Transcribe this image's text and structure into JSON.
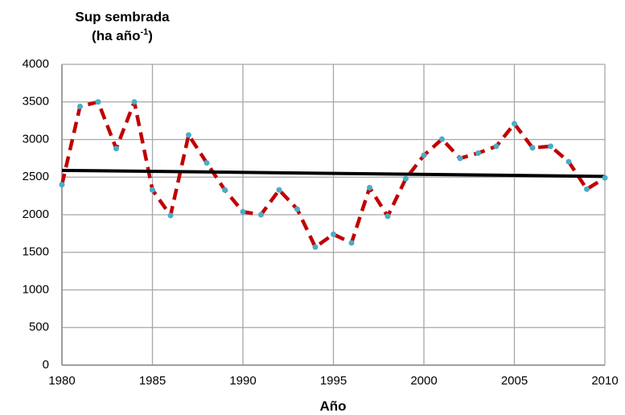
{
  "chart_data": {
    "type": "line",
    "ylabel": {
      "line1": "Sup sembrada",
      "line2": "(ha año",
      "sup": "-1",
      "close": ")"
    },
    "xlabel": "Año",
    "x": [
      1980,
      1981,
      1982,
      1983,
      1984,
      1985,
      1986,
      1987,
      1988,
      1989,
      1990,
      1991,
      1992,
      1993,
      1994,
      1995,
      1996,
      1997,
      1998,
      1999,
      2000,
      2001,
      2002,
      2003,
      2004,
      2005,
      2006,
      2007,
      2008,
      2009,
      2010
    ],
    "series": [
      {
        "color": "#c00000",
        "marker_color": "#4bacc6",
        "values": [
          2400,
          3440,
          3500,
          2880,
          3500,
          2330,
          1990,
          3060,
          2690,
          2330,
          2040,
          2000,
          2330,
          2075,
          1570,
          1740,
          1625,
          2360,
          1980,
          2480,
          2790,
          3005,
          2750,
          2820,
          2910,
          3210,
          2890,
          2910,
          2705,
          2340,
          2490
        ]
      }
    ],
    "trendline": {
      "x": [
        1980,
        2010
      ],
      "values": [
        2590,
        2510
      ],
      "color": "#000000"
    },
    "xlim": [
      1980,
      2010
    ],
    "xticks": [
      1980,
      1985,
      1990,
      1995,
      2000,
      2005,
      2010
    ],
    "ylim": [
      0,
      4000
    ],
    "yticks": [
      0,
      500,
      1000,
      1500,
      2000,
      2500,
      3000,
      3500,
      4000
    ],
    "grid": true
  }
}
